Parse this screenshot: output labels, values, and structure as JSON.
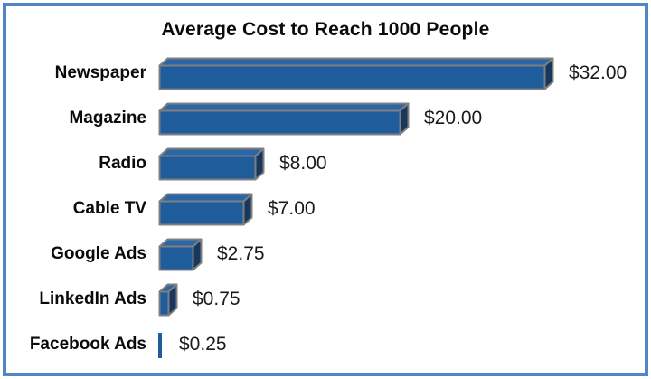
{
  "frame": {
    "border_color": "#4E86C6",
    "background_color": "#FFFFFF"
  },
  "chart_data": {
    "type": "bar",
    "orientation": "horizontal",
    "title": "Average Cost to Reach 1000 People",
    "xlabel": "",
    "ylabel": "",
    "categories": [
      "Newspaper",
      "Magazine",
      "Radio",
      "Cable TV",
      "Google Ads",
      "LinkedIn Ads",
      "Facebook Ads"
    ],
    "values": [
      32.0,
      20.0,
      8.0,
      7.0,
      2.75,
      0.75,
      0.25
    ],
    "data_labels": [
      "$32.00",
      "$20.00",
      "$8.00",
      "$7.00",
      "$2.75",
      "$0.75",
      "$0.25"
    ],
    "xlim": [
      0,
      33
    ],
    "grid": false,
    "legend": false,
    "bar_style": "3d-box",
    "colors": {
      "bar_front": "#1F5C9B",
      "bar_top": "#2B66A6",
      "bar_side": "#17375E",
      "bar_outline": "#7F7F7F",
      "title_text": "#0A0A0A",
      "category_text": "#0A0A0A",
      "value_text": "#1A1A1A"
    }
  }
}
